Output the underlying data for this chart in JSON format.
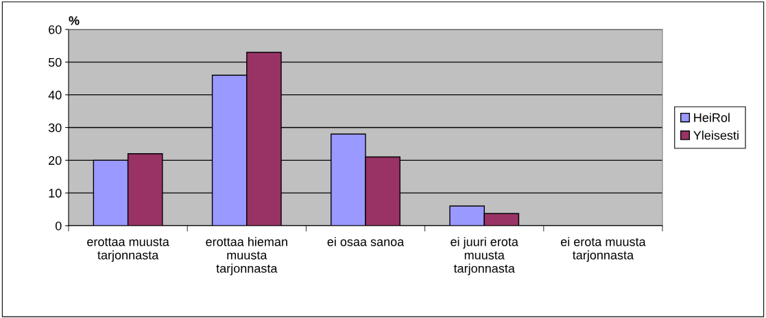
{
  "chart_data": {
    "type": "bar",
    "ylabel": "%",
    "categories": [
      "erottaa muusta\ntarjonnasta",
      "erottaa hieman\nmuusta\ntarjonnasta",
      "ei osaa sanoa",
      "ei juuri erota\nmuusta\ntarjonnasta",
      "ei erota muusta\ntarjonnasta"
    ],
    "series": [
      {
        "name": "HeiRol",
        "color": "#9999ff",
        "values": [
          20,
          46,
          28,
          6,
          0
        ]
      },
      {
        "name": "Yleisesti",
        "color": "#993366",
        "values": [
          22,
          53,
          21,
          3.7,
          0
        ]
      }
    ],
    "ylim": [
      0,
      60
    ],
    "yticks": [
      0,
      10,
      20,
      30,
      40,
      50,
      60
    ],
    "grid": "y",
    "legend": "right"
  }
}
